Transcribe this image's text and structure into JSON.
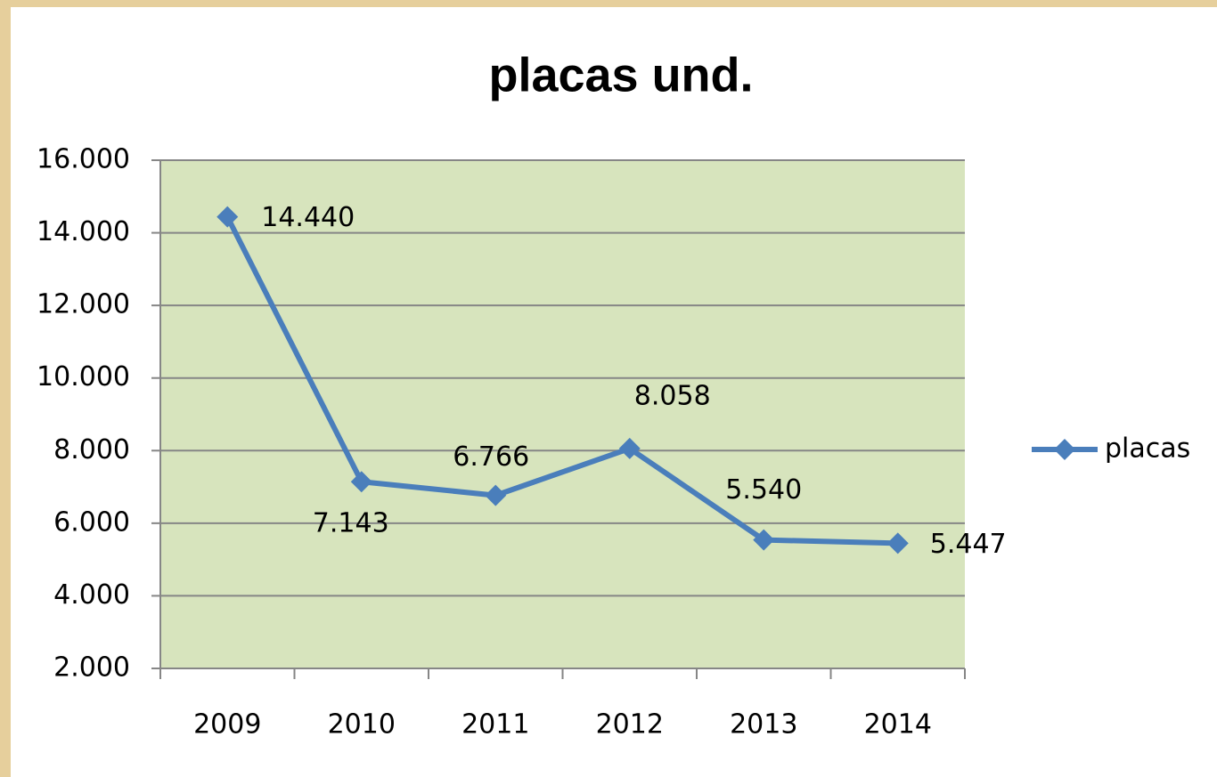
{
  "chart_data": {
    "type": "line",
    "title": "placas und.",
    "categories": [
      "2009",
      "2010",
      "2011",
      "2012",
      "2013",
      "2014"
    ],
    "series": [
      {
        "name": "placas",
        "color": "#4a7ebb",
        "values": [
          14440,
          7143,
          6766,
          8058,
          5540,
          5447
        ],
        "value_labels": [
          "14.440",
          "7.143",
          "6.766",
          "8.058",
          "5.540",
          "5.447"
        ]
      }
    ],
    "ylim": [
      2000,
      16000
    ],
    "yticks": [
      {
        "value": 2000,
        "label": "2.000"
      },
      {
        "value": 4000,
        "label": "4.000"
      },
      {
        "value": 6000,
        "label": "6.000"
      },
      {
        "value": 8000,
        "label": "8.000"
      },
      {
        "value": 10000,
        "label": "10.000"
      },
      {
        "value": 12000,
        "label": "12.000"
      },
      {
        "value": 14000,
        "label": "14.000"
      },
      {
        "value": 16000,
        "label": "16.000"
      }
    ],
    "grid": true,
    "plot_background": "#d7e4bd",
    "legend": "right"
  }
}
